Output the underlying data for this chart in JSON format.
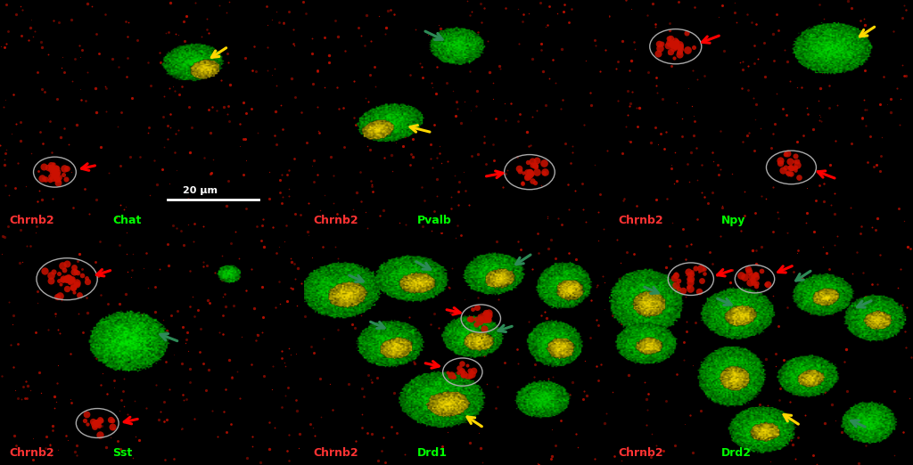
{
  "figsize": [
    10.24,
    5.22
  ],
  "dpi": 100,
  "background_color": "#000000",
  "label_fontsize": 9,
  "text_red": "#FF3333",
  "text_green": "#00FF00",
  "text_teal": "#008080",
  "scale_bar_color": "#FFFFFF",
  "circle_color": "#AAAAAA",
  "panels": [
    {
      "id": "chat",
      "label_red": "Chrnb2",
      "label_green": "Chat",
      "scale_bar": true
    },
    {
      "id": "pvalb",
      "label_red": "Chrnb2",
      "label_green": "Pvalb",
      "scale_bar": false
    },
    {
      "id": "npy",
      "label_red": "Chrnb2",
      "label_green": "Npy",
      "scale_bar": false
    },
    {
      "id": "sst",
      "label_red": "Chrnb2",
      "label_green": "Sst",
      "scale_bar": false
    },
    {
      "id": "drd1",
      "label_red": "Chrnb2",
      "label_green": "Drd1",
      "scale_bar": false
    },
    {
      "id": "drd2",
      "label_red": "Chrnb2",
      "label_green": "Drd2",
      "scale_bar": false
    }
  ]
}
